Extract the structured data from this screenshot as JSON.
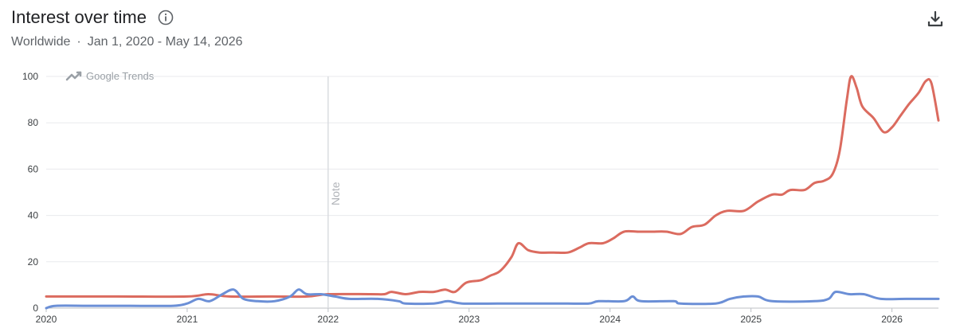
{
  "header": {
    "title": "Interest over time",
    "region": "Worldwide",
    "separator": "·",
    "date_range": "Jan 1, 2020 - May 14, 2026"
  },
  "icons": {
    "info": "info-icon",
    "download": "download-icon",
    "trends_logo": "google-trends-logo"
  },
  "watermark": "Google Trends",
  "note_label": "Note",
  "chart_data": {
    "type": "line",
    "xlim": [
      2020,
      2026.33
    ],
    "ylim": [
      0,
      100
    ],
    "y_ticks": [
      0,
      20,
      40,
      60,
      80,
      100
    ],
    "x_ticks": [
      2020,
      2021,
      2022,
      2023,
      2024,
      2025,
      2026
    ],
    "x_tick_labels": [
      "2020",
      "2021",
      "2022",
      "2023",
      "2024",
      "2025",
      "2026"
    ],
    "grid": true,
    "legend": "none",
    "annotations": [
      {
        "x": 2022.0,
        "text": "Note"
      }
    ],
    "series": [
      {
        "color": "#db6b5f",
        "points": [
          [
            2020.0,
            5
          ],
          [
            2020.5,
            5
          ],
          [
            2021.0,
            5
          ],
          [
            2021.15,
            6
          ],
          [
            2021.3,
            5
          ],
          [
            2021.6,
            5
          ],
          [
            2021.85,
            5
          ],
          [
            2022.0,
            6
          ],
          [
            2022.3,
            6
          ],
          [
            2022.4,
            6
          ],
          [
            2022.45,
            7
          ],
          [
            2022.55,
            6
          ],
          [
            2022.65,
            7
          ],
          [
            2022.75,
            7
          ],
          [
            2022.83,
            8
          ],
          [
            2022.9,
            7
          ],
          [
            2022.98,
            11
          ],
          [
            2023.08,
            12
          ],
          [
            2023.15,
            14
          ],
          [
            2023.22,
            16
          ],
          [
            2023.3,
            22
          ],
          [
            2023.35,
            28
          ],
          [
            2023.42,
            25
          ],
          [
            2023.5,
            24
          ],
          [
            2023.6,
            24
          ],
          [
            2023.7,
            24
          ],
          [
            2023.78,
            26
          ],
          [
            2023.85,
            28
          ],
          [
            2023.95,
            28
          ],
          [
            2024.02,
            30
          ],
          [
            2024.1,
            33
          ],
          [
            2024.2,
            33
          ],
          [
            2024.3,
            33
          ],
          [
            2024.4,
            33
          ],
          [
            2024.5,
            32
          ],
          [
            2024.58,
            35
          ],
          [
            2024.67,
            36
          ],
          [
            2024.75,
            40
          ],
          [
            2024.83,
            42
          ],
          [
            2024.95,
            42
          ],
          [
            2025.05,
            46
          ],
          [
            2025.15,
            49
          ],
          [
            2025.22,
            49
          ],
          [
            2025.28,
            51
          ],
          [
            2025.38,
            51
          ],
          [
            2025.45,
            54
          ],
          [
            2025.52,
            55
          ],
          [
            2025.58,
            58
          ],
          [
            2025.63,
            68
          ],
          [
            2025.68,
            90
          ],
          [
            2025.71,
            100
          ],
          [
            2025.75,
            95
          ],
          [
            2025.79,
            87
          ],
          [
            2025.87,
            82
          ],
          [
            2025.94,
            76
          ],
          [
            2026.0,
            78
          ],
          [
            2026.06,
            83
          ],
          [
            2026.12,
            88
          ],
          [
            2026.19,
            93
          ],
          [
            2026.24,
            98
          ],
          [
            2026.28,
            97
          ],
          [
            2026.33,
            81
          ]
        ]
      },
      {
        "color": "#6b8fd6",
        "points": [
          [
            2020.0,
            0
          ],
          [
            2020.07,
            1
          ],
          [
            2020.3,
            1
          ],
          [
            2020.6,
            1
          ],
          [
            2020.9,
            1
          ],
          [
            2021.0,
            2
          ],
          [
            2021.08,
            4
          ],
          [
            2021.16,
            3
          ],
          [
            2021.25,
            6
          ],
          [
            2021.33,
            8
          ],
          [
            2021.4,
            4
          ],
          [
            2021.5,
            3
          ],
          [
            2021.62,
            3
          ],
          [
            2021.73,
            5
          ],
          [
            2021.79,
            8
          ],
          [
            2021.85,
            6
          ],
          [
            2021.95,
            6
          ],
          [
            2022.05,
            5
          ],
          [
            2022.15,
            4
          ],
          [
            2022.35,
            4
          ],
          [
            2022.5,
            3
          ],
          [
            2022.55,
            2
          ],
          [
            2022.75,
            2
          ],
          [
            2022.85,
            3
          ],
          [
            2022.95,
            2
          ],
          [
            2023.2,
            2
          ],
          [
            2023.5,
            2
          ],
          [
            2023.7,
            2
          ],
          [
            2023.85,
            2
          ],
          [
            2023.92,
            3
          ],
          [
            2024.1,
            3
          ],
          [
            2024.16,
            5
          ],
          [
            2024.22,
            3
          ],
          [
            2024.45,
            3
          ],
          [
            2024.5,
            2
          ],
          [
            2024.75,
            2
          ],
          [
            2024.85,
            4
          ],
          [
            2024.95,
            5
          ],
          [
            2025.05,
            5
          ],
          [
            2025.15,
            3
          ],
          [
            2025.45,
            3
          ],
          [
            2025.55,
            4
          ],
          [
            2025.6,
            7
          ],
          [
            2025.7,
            6
          ],
          [
            2025.8,
            6
          ],
          [
            2025.92,
            4
          ],
          [
            2026.1,
            4
          ],
          [
            2026.33,
            4
          ]
        ]
      }
    ]
  }
}
